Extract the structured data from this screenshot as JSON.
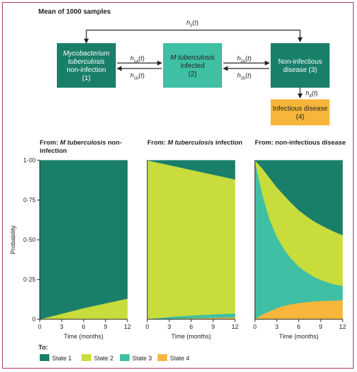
{
  "diagram": {
    "title": "Mean of 1000 samples",
    "states": [
      {
        "id": 1,
        "lines": [
          "Mycobacterium",
          "tuberculosis",
          "non-infection",
          "(1)"
        ],
        "italic_lines": [
          0,
          1
        ],
        "color": "#1a7f6a"
      },
      {
        "id": 2,
        "lines": [
          "M tuberculosis",
          "infected",
          "(2)"
        ],
        "italic_lines": [
          0
        ],
        "color": "#3fbfa3"
      },
      {
        "id": 3,
        "lines": [
          "Non-infectious",
          "disease (3)"
        ],
        "italic_lines": [],
        "color": "#1a7f6a"
      },
      {
        "id": 4,
        "lines": [
          "Infectious disease",
          "(4)"
        ],
        "italic_lines": [],
        "color": "#f6b63c"
      }
    ],
    "transitions": [
      {
        "label": "h",
        "sub": "3",
        "from": 1,
        "to": 3
      },
      {
        "label": "h",
        "sub": "1a",
        "from": 1,
        "to": 2
      },
      {
        "label": "h",
        "sub": "1b",
        "from": 2,
        "to": 1
      },
      {
        "label": "h",
        "sub": "2a",
        "from": 2,
        "to": 3
      },
      {
        "label": "h",
        "sub": "2b",
        "from": 3,
        "to": 2
      },
      {
        "label": "h",
        "sub": "4",
        "from": 3,
        "to": 4
      }
    ]
  },
  "chart_data": [
    {
      "type": "area",
      "title_parts": [
        {
          "text": "From: ",
          "italic": false
        },
        {
          "text": "M tuberculosis",
          "italic": true
        },
        {
          "text": " non-",
          "italic": false
        }
      ],
      "title_line2": "infection",
      "xlabel": "Time (months)",
      "ylabel": "Probability",
      "x_ticks": [
        0,
        3,
        6,
        9,
        12
      ],
      "y_ticks": [
        "0",
        "0·25",
        "0·50",
        "0·75",
        "1·00"
      ],
      "xlim": [
        0,
        12
      ],
      "ylim": [
        0,
        1
      ],
      "stacked": true,
      "x": [
        0,
        3,
        6,
        9,
        12
      ],
      "series": [
        {
          "name": "State 4",
          "values": [
            0,
            0,
            0,
            0,
            0
          ]
        },
        {
          "name": "State 3",
          "values": [
            0,
            0,
            0,
            0,
            0
          ]
        },
        {
          "name": "State 2",
          "values": [
            0,
            0.035,
            0.07,
            0.1,
            0.13
          ]
        },
        {
          "name": "State 1",
          "values": [
            1,
            0.965,
            0.93,
            0.9,
            0.87
          ]
        }
      ]
    },
    {
      "type": "area",
      "title_parts": [
        {
          "text": "From: ",
          "italic": false
        },
        {
          "text": "M tuberculosis",
          "italic": true
        },
        {
          "text": " infection",
          "italic": false
        }
      ],
      "title_line2": "",
      "xlabel": "Time (months)",
      "ylabel": "",
      "x_ticks": [
        0,
        3,
        6,
        9,
        12
      ],
      "y_ticks": [],
      "xlim": [
        0,
        12
      ],
      "ylim": [
        0,
        1
      ],
      "stacked": true,
      "x": [
        0,
        3,
        6,
        9,
        12
      ],
      "series": [
        {
          "name": "State 4",
          "values": [
            0,
            0.003,
            0.006,
            0.009,
            0.012
          ]
        },
        {
          "name": "State 3",
          "values": [
            0,
            0.012,
            0.018,
            0.022,
            0.025
          ]
        },
        {
          "name": "State 2",
          "values": [
            1,
            0.955,
            0.916,
            0.879,
            0.843
          ]
        },
        {
          "name": "State 1",
          "values": [
            0,
            0.03,
            0.06,
            0.09,
            0.12
          ]
        }
      ]
    },
    {
      "type": "area",
      "title_parts": [
        {
          "text": "From: non-infectious disease",
          "italic": false
        }
      ],
      "title_line2": "",
      "xlabel": "Time (months)",
      "ylabel": "",
      "x_ticks": [
        0,
        3,
        6,
        9,
        12
      ],
      "y_ticks": [],
      "xlim": [
        0,
        12
      ],
      "ylim": [
        0,
        1
      ],
      "stacked": true,
      "x": [
        0,
        1,
        2,
        3,
        4,
        5,
        6,
        7,
        8,
        9,
        10,
        11,
        12
      ],
      "series": [
        {
          "name": "State 4",
          "values": [
            0,
            0.03,
            0.05,
            0.07,
            0.085,
            0.095,
            0.102,
            0.108,
            0.112,
            0.115,
            0.117,
            0.118,
            0.12
          ]
        },
        {
          "name": "State 3",
          "values": [
            1,
            0.76,
            0.58,
            0.45,
            0.355,
            0.285,
            0.23,
            0.19,
            0.157,
            0.133,
            0.115,
            0.1,
            0.09
          ]
        },
        {
          "name": "State 2",
          "values": [
            0,
            0.16,
            0.26,
            0.31,
            0.34,
            0.35,
            0.354,
            0.353,
            0.35,
            0.345,
            0.338,
            0.33,
            0.32
          ]
        },
        {
          "name": "State 1",
          "values": [
            0,
            0.05,
            0.11,
            0.17,
            0.22,
            0.27,
            0.314,
            0.349,
            0.381,
            0.407,
            0.43,
            0.452,
            0.47
          ]
        }
      ]
    }
  ],
  "legend": {
    "title": "To:",
    "items": [
      {
        "label": "State 1",
        "color": "#1a7f6a"
      },
      {
        "label": "State 2",
        "color": "#c8dc3c"
      },
      {
        "label": "State 3",
        "color": "#3fbfa3"
      },
      {
        "label": "State 4",
        "color": "#f6b63c"
      }
    ]
  },
  "colors": {
    "State 1": "#1a7f6a",
    "State 2": "#c8dc3c",
    "State 3": "#3fbfa3",
    "State 4": "#f6b63c",
    "frame": "#b0306a"
  }
}
